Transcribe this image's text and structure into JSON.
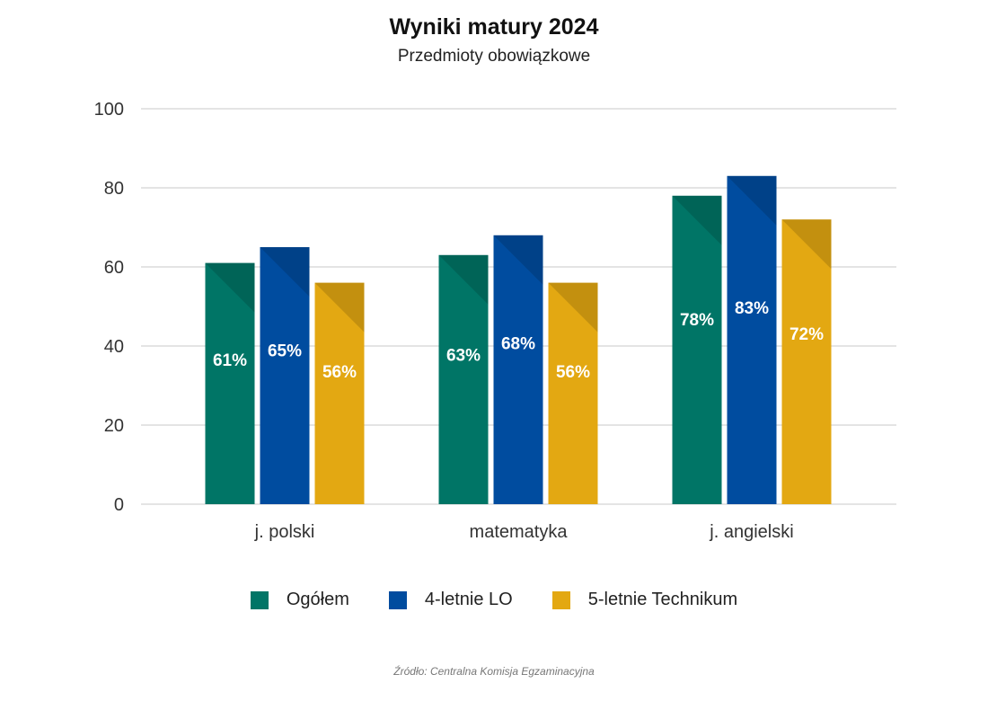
{
  "colors": {
    "ogolem": "#007566",
    "lo": "#004c9f",
    "technikum": "#e3a812",
    "grid": "#c8c8c8",
    "axis_text": "#333333"
  },
  "chart_data": {
    "type": "bar",
    "title": "Wyniki matury 2024",
    "subtitle": "Przedmioty obowiązkowe",
    "categories": [
      "j. polski",
      "matematyka",
      "j. angielski"
    ],
    "series": [
      {
        "name": "Ogółem",
        "values": [
          61,
          63,
          78
        ],
        "labels": [
          "61%",
          "63%",
          "78%"
        ]
      },
      {
        "name": "4-letnie LO",
        "values": [
          65,
          68,
          83
        ],
        "labels": [
          "65%",
          "68%",
          "83%"
        ]
      },
      {
        "name": "5-letnie Technikum",
        "values": [
          56,
          56,
          72
        ],
        "labels": [
          "56%",
          "56%",
          "72%"
        ]
      }
    ],
    "ylim": [
      0,
      100
    ],
    "yticks": [
      0,
      20,
      40,
      60,
      80,
      100
    ],
    "grid": true,
    "legend_position": "bottom",
    "source": "Źródło: Centralna Komisja Egzaminacyjna"
  }
}
